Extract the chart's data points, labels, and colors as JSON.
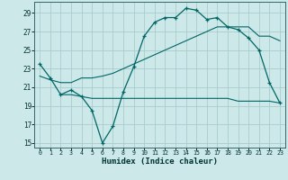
{
  "xlabel": "Humidex (Indice chaleur)",
  "bg_color": "#cce8e8",
  "grid_color": "#aacccc",
  "line_color": "#006666",
  "xlim": [
    -0.5,
    23.5
  ],
  "ylim": [
    14.5,
    30.2
  ],
  "xticks": [
    0,
    1,
    2,
    3,
    4,
    5,
    6,
    7,
    8,
    9,
    10,
    11,
    12,
    13,
    14,
    15,
    16,
    17,
    18,
    19,
    20,
    21,
    22,
    23
  ],
  "yticks": [
    15,
    17,
    19,
    21,
    23,
    25,
    27,
    29
  ],
  "curve_x": [
    0,
    1,
    2,
    3,
    4,
    5,
    6,
    7,
    8,
    9,
    10,
    11,
    12,
    13,
    14,
    15,
    16,
    17,
    18,
    19,
    20,
    21,
    22,
    23
  ],
  "curve_y": [
    23.5,
    22.0,
    20.2,
    20.7,
    20.0,
    18.5,
    15.0,
    16.8,
    20.5,
    23.2,
    26.5,
    28.0,
    28.5,
    28.5,
    29.5,
    29.3,
    28.3,
    28.5,
    27.5,
    27.2,
    26.3,
    25.0,
    21.5,
    19.3
  ],
  "flat_x": [
    2,
    3,
    4,
    5,
    6,
    7,
    8,
    9,
    10,
    11,
    12,
    13,
    14,
    15,
    16,
    17,
    18,
    19,
    20,
    21,
    22,
    23
  ],
  "flat_y": [
    20.2,
    20.2,
    20.0,
    19.8,
    19.8,
    19.8,
    19.8,
    19.8,
    19.8,
    19.8,
    19.8,
    19.8,
    19.8,
    19.8,
    19.8,
    19.8,
    19.8,
    19.5,
    19.5,
    19.5,
    19.5,
    19.3
  ],
  "diag_x": [
    0,
    1,
    2,
    3,
    4,
    5,
    6,
    7,
    8,
    9,
    10,
    11,
    12,
    13,
    14,
    15,
    16,
    17,
    18,
    19,
    20,
    21,
    22,
    23
  ],
  "diag_y": [
    22.2,
    21.8,
    21.5,
    21.5,
    22.0,
    22.0,
    22.2,
    22.5,
    23.0,
    23.5,
    24.0,
    24.5,
    25.0,
    25.5,
    26.0,
    26.5,
    27.0,
    27.5,
    27.5,
    27.5,
    27.5,
    26.5,
    26.5,
    26.0
  ]
}
